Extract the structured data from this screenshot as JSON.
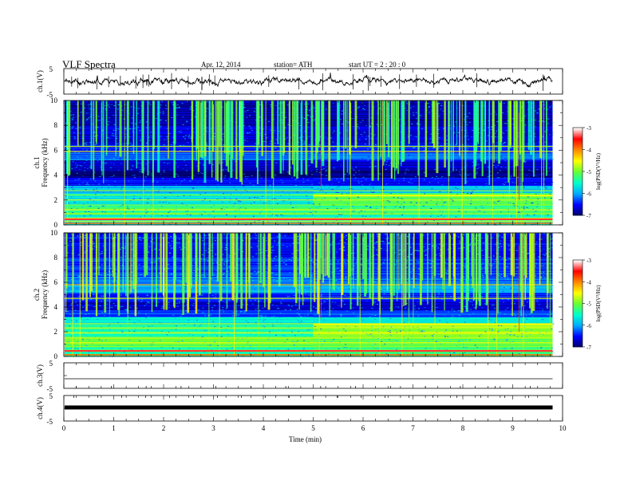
{
  "header": {
    "title": "VLF  Spectra",
    "date": "Apr. 12, 2014",
    "station": "station= ATH",
    "start": "start  UT  =   2  : 20 : 0"
  },
  "chart_data": [
    {
      "type": "line",
      "ylabel": "ch.1(V)",
      "ylim": [
        -5,
        5
      ],
      "yticks": [
        "5",
        "-5"
      ],
      "description_values": {
        "baseline": 0,
        "noise_amplitude": 1
      },
      "xlim": [
        0,
        10
      ]
    },
    {
      "type": "heatmap",
      "ylabel": "ch.1\nFrequency (kHz)",
      "ylabel_channel": "ch.1",
      "ylabel_axis": "Frequency (kHz)",
      "ylim": [
        0,
        10
      ],
      "yticks": [
        "0",
        "2",
        "4",
        "6",
        "8",
        "10"
      ],
      "xlim": [
        0,
        10
      ],
      "data_end_min": 9.8,
      "colorbar": {
        "label": "log(PSD(V²/Hz)",
        "ticks": [
          "-3",
          "-4",
          "-5",
          "-6",
          "-7"
        ],
        "range": [
          -7,
          -3
        ]
      }
    },
    {
      "type": "heatmap",
      "ylabel": "ch.2\nFrequency (kHz)",
      "ylabel_channel": "ch.2",
      "ylabel_axis": "Frequency (kHz)",
      "ylim": [
        0,
        10
      ],
      "yticks": [
        "0",
        "2",
        "4",
        "6",
        "8",
        "10"
      ],
      "xlim": [
        0,
        10
      ],
      "data_end_min": 9.8,
      "colorbar": {
        "label": "log(PSD(V²/Hz)",
        "ticks": [
          "-3",
          "-4",
          "-5",
          "-6",
          "-7"
        ],
        "range": [
          -7,
          -3
        ]
      }
    },
    {
      "type": "line",
      "ylabel": "ch.3(V)",
      "ylim": [
        -5,
        5
      ],
      "yticks": [
        "5",
        "-5"
      ],
      "xlim": [
        0,
        10
      ]
    },
    {
      "type": "line",
      "ylabel": "ch.4(V)",
      "ylim": [
        -5,
        5
      ],
      "yticks": [
        "5",
        "-5"
      ],
      "xlim": [
        0,
        10
      ],
      "xlabel": "Time  (min)",
      "xticks": [
        "0",
        "1",
        "2",
        "3",
        "4",
        "5",
        "6",
        "7",
        "8",
        "9",
        "10"
      ]
    }
  ],
  "colors": {
    "trace": "#000000",
    "colormap": [
      "#000066",
      "#0000ff",
      "#00aaff",
      "#00ffcc",
      "#66ff33",
      "#ffff00",
      "#ff8800",
      "#ff0000",
      "#ffffff"
    ]
  }
}
